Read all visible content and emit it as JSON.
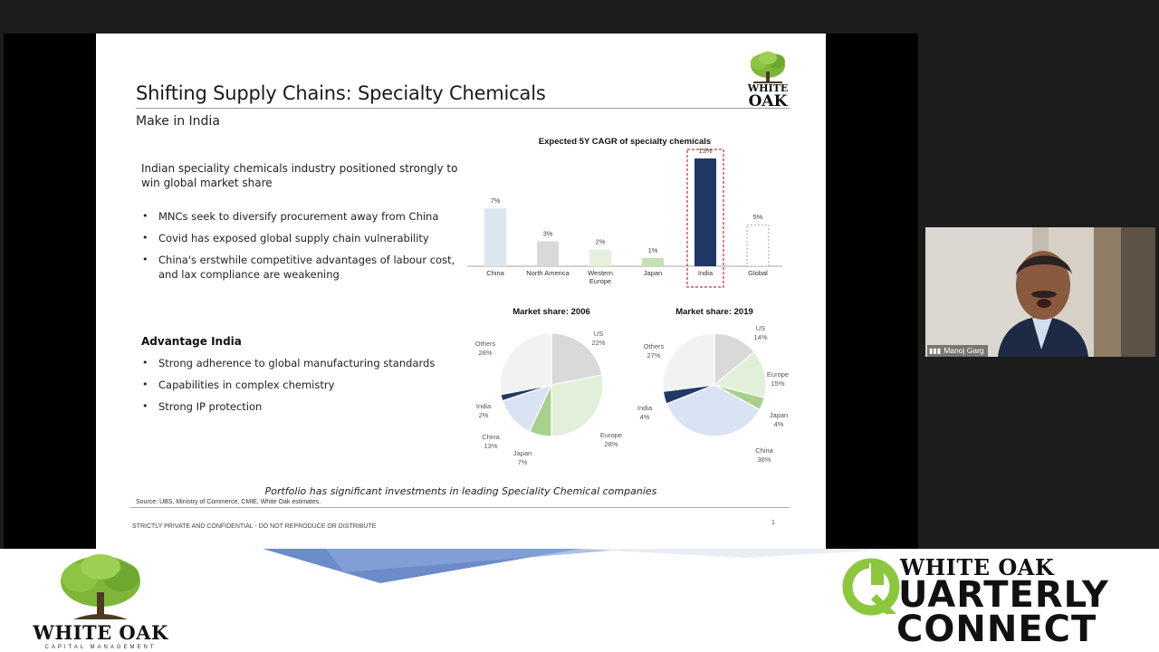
{
  "slide": {
    "title": "Shifting Supply Chains: Specialty Chemicals",
    "subtitle": "Make in India",
    "logo_text_line1": "WHITE",
    "logo_text_line2": "OAK",
    "intro": "Indian speciality chemicals industry positioned strongly to win global market share",
    "bullets_top": [
      "MNCs seek to diversify procurement away from China",
      "Covid has exposed global supply chain vulnerability",
      "China's erstwhile competitive advantages of labour cost, and lax compliance are weakening"
    ],
    "advantage_heading": "Advantage India",
    "bullets_advantage": [
      "Strong adherence to global manufacturing standards",
      "Capabilities in complex chemistry",
      "Strong IP protection"
    ],
    "portfolio_note": "Portfolio has significant investments in leading Speciality Chemical companies",
    "source": "Source: UBS, Ministry of Commerce, CMIE, White Oak estimates.",
    "confidential": "STRICTLY PRIVATE AND CONFIDENTIAL - DO NOT REPRODUCE OR DISTRIBUTE",
    "page_number": "1"
  },
  "chart_data": [
    {
      "type": "bar",
      "title": "Expected 5Y CAGR of specialty chemicals",
      "categories": [
        "China",
        "North America",
        "Western Europe",
        "Japan",
        "India",
        "Global"
      ],
      "values": [
        7,
        3,
        2,
        1,
        13,
        5
      ],
      "value_labels": [
        "7%",
        "3%",
        "2%",
        "1%",
        "13%",
        "5%"
      ],
      "colors": [
        "#dce6f0",
        "#d9d9d9",
        "#e6f0dc",
        "#c5e0b4",
        "#1f3864",
        "#ffffff"
      ],
      "highlight": "India",
      "ylim": [
        0,
        13
      ]
    },
    {
      "type": "pie",
      "title": "Market share: 2006",
      "labels": [
        "US",
        "Europe",
        "Japan",
        "China",
        "India",
        "Others"
      ],
      "values": [
        22,
        28,
        7,
        13,
        2,
        28
      ],
      "value_labels": [
        "22%",
        "28%",
        "7%",
        "13%",
        "2%",
        "28%"
      ],
      "colors": [
        "#d9d9d9",
        "#e2efd9",
        "#a9d18e",
        "#dae3f3",
        "#1f3864",
        "#f2f2f2"
      ]
    },
    {
      "type": "pie",
      "title": "Market share: 2019",
      "labels": [
        "US",
        "Europe",
        "Japan",
        "China",
        "India",
        "Others"
      ],
      "values": [
        14,
        15,
        4,
        36,
        4,
        27
      ],
      "value_labels": [
        "14%",
        "15%",
        "4%",
        "36%",
        "4%",
        "27%"
      ],
      "colors": [
        "#d9d9d9",
        "#e2efd9",
        "#a9d18e",
        "#dae3f3",
        "#1f3864",
        "#f2f2f2"
      ]
    }
  ],
  "speaker": {
    "name": "Manoj Garg"
  },
  "banner": {
    "brand_name": "WHITE OAK",
    "brand_tagline": "CAPITAL MANAGEMENT",
    "event_line1": "WHITE OAK",
    "event_line2": "UARTERLY",
    "event_line3": "CONNECT",
    "accent_green": "#8dc63f",
    "accent_blue": "#4472c4"
  }
}
